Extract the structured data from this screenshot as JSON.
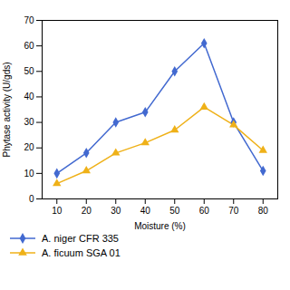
{
  "chart_data": {
    "type": "line",
    "x": [
      10,
      20,
      30,
      40,
      50,
      60,
      70,
      80
    ],
    "xlabel": "Moisture (%)",
    "ylabel": "Phytase activity (U/gds)",
    "xlim": [
      5,
      85
    ],
    "ylim": [
      0,
      70
    ],
    "xticks": [
      10,
      20,
      30,
      40,
      50,
      60,
      70,
      80
    ],
    "yticks": [
      0,
      10,
      20,
      30,
      40,
      50,
      60,
      70
    ],
    "grid": false,
    "legend": "lower left",
    "series": [
      {
        "name": "A. niger CFR 335",
        "marker": "diamond",
        "values": [
          10,
          18,
          30,
          34,
          50,
          61,
          30,
          11
        ]
      },
      {
        "name": "A. ficuum SGA 01",
        "marker": "triangle",
        "values": [
          6,
          11,
          18,
          22,
          27,
          36,
          29,
          19
        ]
      }
    ]
  }
}
